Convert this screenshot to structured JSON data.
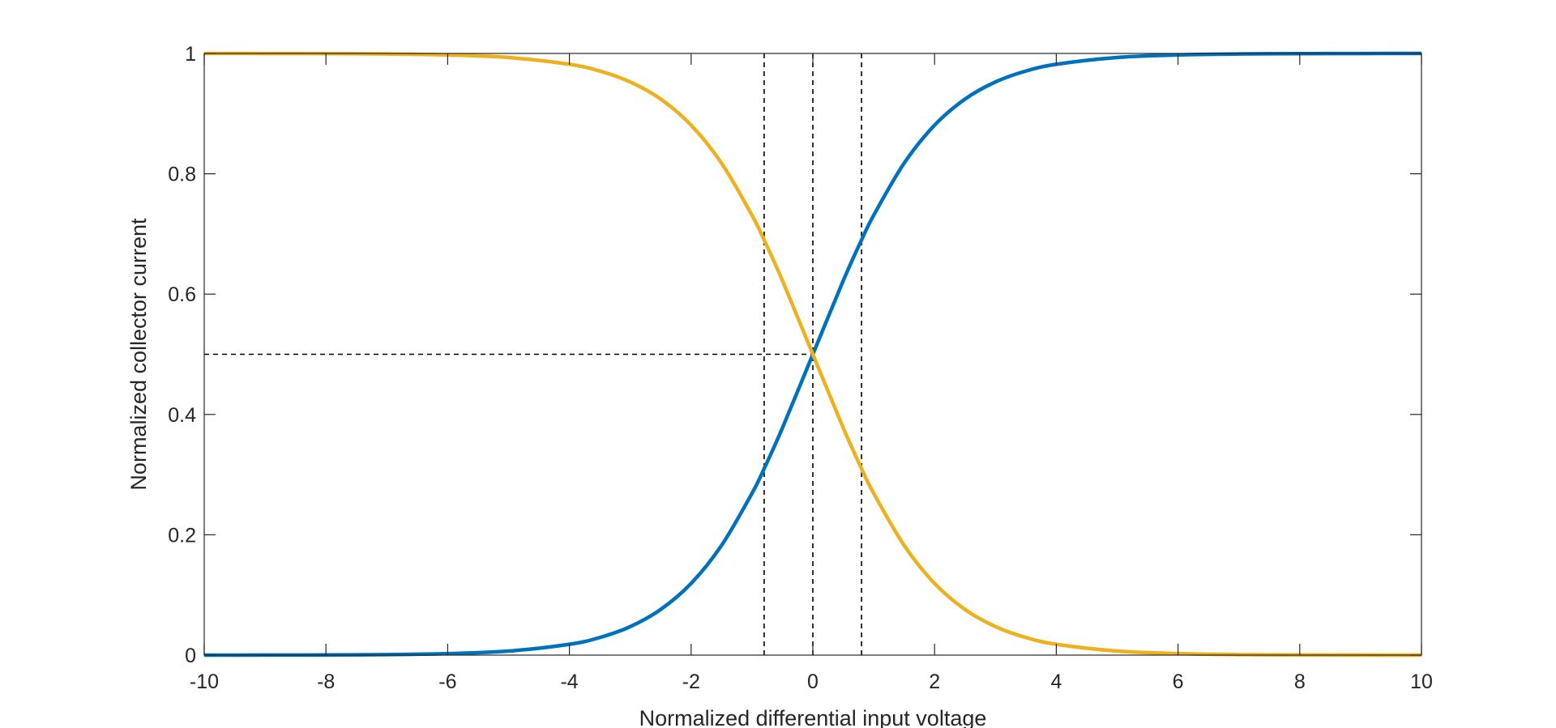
{
  "chart_data": {
    "type": "line",
    "title": "",
    "xlabel": "Normalized differential input voltage",
    "ylabel": "Normalized collector current",
    "xlim": [
      -10,
      10
    ],
    "ylim": [
      0,
      1
    ],
    "xticks": [
      -10,
      -8,
      -6,
      -4,
      -2,
      0,
      2,
      4,
      6,
      8,
      10
    ],
    "yticks": [
      0,
      0.2,
      0.4,
      0.6,
      0.8,
      1
    ],
    "xtick_labels": [
      "-10",
      "-8",
      "-6",
      "-4",
      "-2",
      "0",
      "2",
      "4",
      "6",
      "8",
      "10"
    ],
    "ytick_labels": [
      "0",
      "0.2",
      "0.4",
      "0.6",
      "0.8",
      "1"
    ],
    "grid": false,
    "series": [
      {
        "color": "#0072BD",
        "x": [
          -10,
          -9,
          -8,
          -7,
          -6,
          -5,
          -4,
          -3.5,
          -3,
          -2.5,
          -2,
          -1.5,
          -1,
          -0.8,
          -0.5,
          0,
          0.5,
          0.8,
          1,
          1.5,
          2,
          2.5,
          3,
          3.5,
          4,
          5,
          6,
          7,
          8,
          9,
          10
        ],
        "y": [
          0.0,
          0.0001,
          0.0003,
          0.0009,
          0.0025,
          0.0067,
          0.018,
          0.0293,
          0.0474,
          0.0759,
          0.1192,
          0.1824,
          0.2689,
          0.31,
          0.3775,
          0.5,
          0.6225,
          0.69,
          0.7311,
          0.8176,
          0.8808,
          0.9241,
          0.9526,
          0.9707,
          0.982,
          0.9933,
          0.9975,
          0.9991,
          0.9997,
          0.9999,
          1.0
        ]
      },
      {
        "color": "#EDB120",
        "x": [
          -10,
          -9,
          -8,
          -7,
          -6,
          -5,
          -4,
          -3.5,
          -3,
          -2.5,
          -2,
          -1.5,
          -1,
          -0.8,
          -0.5,
          0,
          0.5,
          0.8,
          1,
          1.5,
          2,
          2.5,
          3,
          3.5,
          4,
          5,
          6,
          7,
          8,
          9,
          10
        ],
        "y": [
          1.0,
          0.9999,
          0.9997,
          0.9991,
          0.9975,
          0.9933,
          0.982,
          0.9707,
          0.9526,
          0.9241,
          0.8808,
          0.8176,
          0.7311,
          0.69,
          0.6225,
          0.5,
          0.3775,
          0.31,
          0.2689,
          0.1824,
          0.1192,
          0.0759,
          0.0474,
          0.0293,
          0.018,
          0.0067,
          0.0025,
          0.0009,
          0.0003,
          0.0001,
          0.0
        ]
      }
    ],
    "reference_lines": {
      "vertical_x": [
        -0.8,
        0,
        0.8
      ],
      "horizontal": {
        "y": 0.5,
        "x_from": -10,
        "x_to": 0
      },
      "style": "dashed",
      "color": "#000000"
    }
  }
}
